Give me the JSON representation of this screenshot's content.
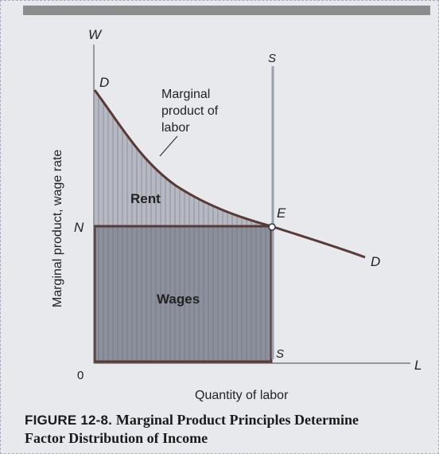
{
  "diagram": {
    "axis_w": "W",
    "axis_l": "L",
    "origin": "0",
    "ylabel": "Marginal product, wage rate",
    "xlabel": "Quantity of labor",
    "label_d_top": "D",
    "label_d_bottom": "D",
    "label_n": "N",
    "label_e": "E",
    "label_s_top": "S",
    "label_s_bottom": "S",
    "annotation_line1": "Marginal",
    "annotation_line2": "product of",
    "annotation_line3": "labor",
    "region_rent": "Rent",
    "region_wages": "Wages"
  },
  "caption": {
    "figure_number": "FIGURE 12-8.",
    "title_line1": "Marginal Product Principles Determine",
    "title_line2": "Factor Distribution of Income"
  },
  "colors": {
    "rent_fill": "#b4b9c4",
    "wages_fill": "#8a909d",
    "curve": "#5a3a36",
    "supply_line": "#9aa0aa"
  }
}
